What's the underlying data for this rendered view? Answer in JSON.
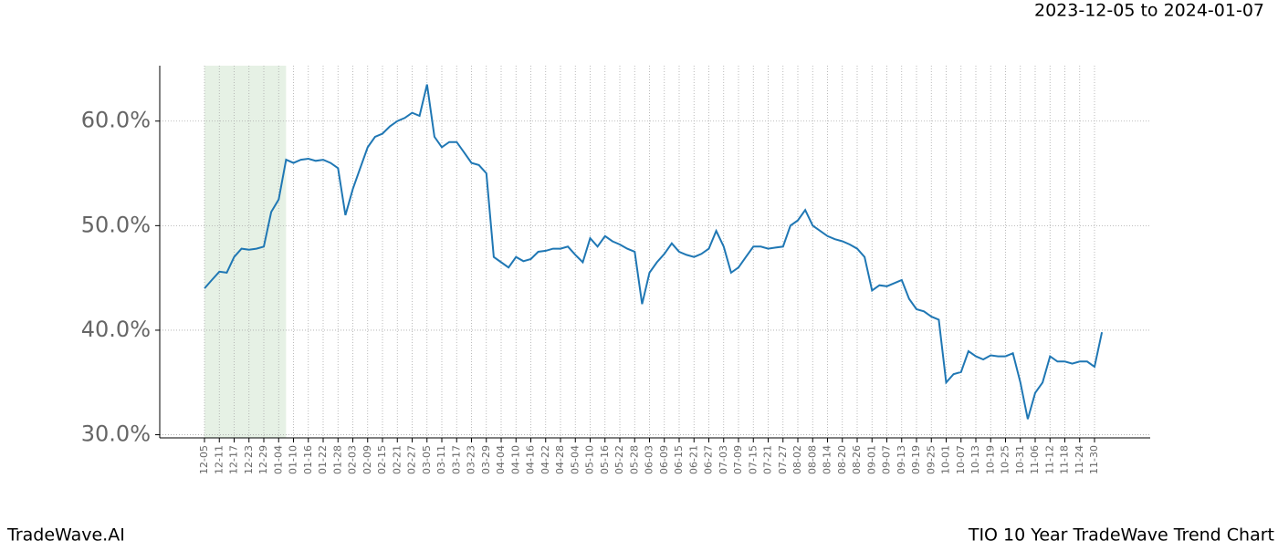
{
  "header": "2023-12-05 to 2024-01-07",
  "footer_left": "TradeWave.AI",
  "footer_right": "TIO 10 Year TradeWave Trend Chart",
  "chart_data": {
    "type": "line",
    "color": "#1f77b4",
    "highlight": {
      "from": 0,
      "to": 11,
      "color": "#d5e8d4"
    },
    "grid": true,
    "categories": [
      "12-05",
      null,
      "12-11",
      null,
      "12-17",
      null,
      "12-23",
      null,
      "12-29",
      null,
      "01-04",
      null,
      "01-10",
      null,
      "01-16",
      null,
      "01-22",
      null,
      "01-28",
      null,
      "02-03",
      null,
      "02-09",
      null,
      "02-15",
      null,
      "02-21",
      null,
      "02-27",
      null,
      "03-05",
      null,
      "03-11",
      null,
      "03-17",
      null,
      "03-23",
      null,
      "03-29",
      null,
      "04-04",
      null,
      "04-10",
      null,
      "04-16",
      null,
      "04-22",
      null,
      "04-28",
      null,
      "05-04",
      null,
      "05-10",
      null,
      "05-16",
      null,
      "05-22",
      null,
      "05-28",
      null,
      "06-03",
      null,
      "06-09",
      null,
      "06-15",
      null,
      "06-21",
      null,
      "06-27",
      null,
      "07-03",
      null,
      "07-09",
      null,
      "07-15",
      null,
      "07-21",
      null,
      "07-27",
      null,
      "08-02",
      null,
      "08-08",
      null,
      "08-14",
      null,
      "08-20",
      null,
      "08-26",
      null,
      "09-01",
      null,
      "09-07",
      null,
      "09-13",
      null,
      "09-19",
      null,
      "09-25",
      null,
      "10-01",
      null,
      "10-07",
      null,
      "10-13",
      null,
      "10-19",
      null,
      "10-25",
      null,
      "10-31",
      null,
      "11-06",
      null,
      "11-12",
      null,
      "11-18",
      null,
      "11-24",
      null,
      "11-30",
      null
    ],
    "values": [
      44.0,
      44.8,
      45.6,
      45.5,
      47.0,
      47.8,
      47.7,
      47.8,
      48.0,
      51.3,
      52.5,
      56.3,
      56.0,
      56.3,
      56.4,
      56.2,
      56.3,
      56.0,
      55.5,
      51.0,
      53.5,
      55.5,
      57.5,
      58.5,
      58.8,
      59.5,
      60.0,
      60.3,
      60.8,
      60.5,
      63.5,
      58.5,
      57.5,
      58.0,
      58.0,
      57.0,
      56.0,
      55.8,
      55.0,
      47.0,
      46.5,
      46.0,
      47.0,
      46.6,
      46.8,
      47.5,
      47.6,
      47.8,
      47.8,
      48.0,
      47.2,
      46.5,
      48.8,
      48.0,
      49.0,
      48.5,
      48.2,
      47.8,
      47.5,
      42.5,
      45.5,
      46.5,
      47.3,
      48.3,
      47.5,
      47.2,
      47.0,
      47.3,
      47.8,
      49.5,
      48.0,
      45.5,
      46.0,
      47.0,
      48.0,
      48.0,
      47.8,
      47.9,
      48.0,
      50.0,
      50.5,
      51.5,
      50.0,
      49.5,
      49.0,
      48.7,
      48.5,
      48.2,
      47.8,
      47.0,
      43.8,
      44.3,
      44.2,
      44.5,
      44.8,
      43.0,
      42.0,
      41.8,
      41.3,
      41.0,
      35.0,
      35.8,
      36.0,
      38.0,
      37.5,
      37.2,
      37.6,
      37.5,
      37.5,
      37.8,
      35.0,
      31.5,
      34.0,
      35.0,
      37.5,
      37.0,
      37.0,
      36.8,
      37.0,
      37.0,
      36.5,
      39.8
    ],
    "ylim": [
      29.7,
      65.3
    ],
    "yticks": [
      {
        "value": 30,
        "label": "30.0%"
      },
      {
        "value": 40,
        "label": "40.0%"
      },
      {
        "value": 50,
        "label": "50.0%"
      },
      {
        "value": 60,
        "label": "60.0%"
      }
    ]
  }
}
